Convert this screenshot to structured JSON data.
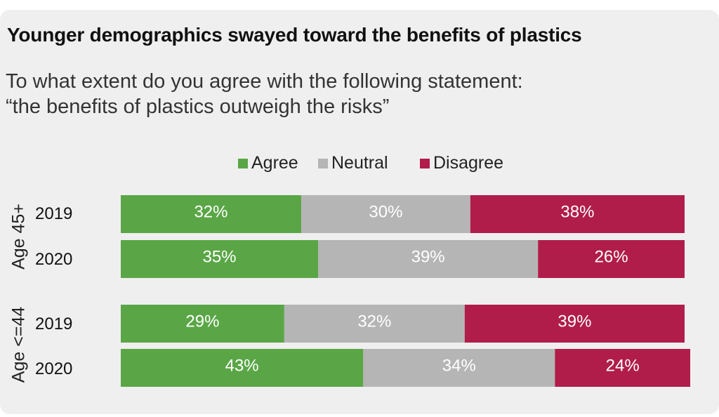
{
  "chart_data": {
    "type": "bar",
    "orientation": "horizontal",
    "stacked": true,
    "title": "Younger demographics swayed toward the benefits of plastics",
    "subtitle_lines": [
      "To what extent do you agree with the following statement:",
      "“the benefits of plastics outweigh the risks”"
    ],
    "legend": [
      "Agree",
      "Neutral",
      "Disagree"
    ],
    "legend_position": "top-center",
    "colors": {
      "Agree": "#5aa646",
      "Neutral": "#b5b5b5",
      "Disagree": "#b01d4b"
    },
    "value_suffix": "%",
    "xlim": [
      0,
      100
    ],
    "grid": false,
    "groups": [
      {
        "label": "Age 45+",
        "rows": [
          {
            "year": "2019",
            "values": [
              32,
              30,
              38
            ]
          },
          {
            "year": "2020",
            "values": [
              35,
              39,
              26
            ]
          }
        ]
      },
      {
        "label": "Age <=44",
        "rows": [
          {
            "year": "2019",
            "values": [
              29,
              32,
              39
            ]
          },
          {
            "year": "2020",
            "values": [
              43,
              34,
              24
            ]
          }
        ]
      }
    ]
  }
}
